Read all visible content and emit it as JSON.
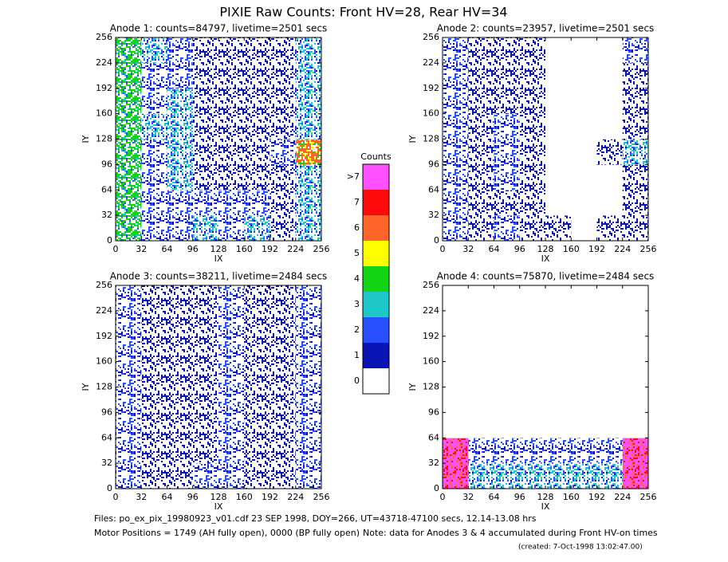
{
  "title": "PIXIE Raw Counts:  Front HV=28, Rear HV=34",
  "colorbar": {
    "title": "Counts",
    "levels": [
      0,
      1,
      2,
      3,
      4,
      5,
      6,
      7,
      {
        "value": 8,
        "label": ">7"
      }
    ],
    "colors": [
      "#ffffff",
      "#0a14b4",
      "#2850ff",
      "#1ec8c8",
      "#14d214",
      "#ffff00",
      "#ff6428",
      "#ff0a0a",
      "#ff50ff"
    ]
  },
  "footer": {
    "files": "Files: po_ex_pix_19980923_v01.cdf    23 SEP 1998, DOY=266, UT=43718-47100 secs, 12.14-13.08 hrs",
    "motor": "Motor Positions = 1749 (AH fully open), 0000 (BP fully open)",
    "note": "Note: data for Anodes 3 & 4 accumulated during Front HV-on times",
    "created": "(created:  7-Oct-1998 13:02:47.00)"
  },
  "chart_data": [
    {
      "type": "heatmap",
      "title": "Anode 1: counts=84797, livetime=2501 secs",
      "xlabel": "IX",
      "ylabel": "IY",
      "xlim": [
        0,
        256
      ],
      "ylim": [
        0,
        256
      ],
      "xticks": [
        0,
        32,
        64,
        96,
        128,
        160,
        192,
        224,
        256
      ],
      "yticks": [
        0,
        32,
        64,
        96,
        128,
        160,
        192,
        224,
        256
      ],
      "z": [
        [
          4,
          2,
          2,
          3,
          2,
          3,
          1,
          3
        ],
        [
          4,
          2,
          2,
          2,
          2,
          2,
          1,
          3
        ],
        [
          4,
          2,
          3,
          1,
          1,
          1,
          1,
          3
        ],
        [
          4,
          2,
          3,
          1,
          1,
          1,
          2,
          6
        ],
        [
          4,
          3,
          3,
          1,
          1,
          1,
          1,
          3
        ],
        [
          4,
          2,
          3,
          1,
          1,
          1,
          1,
          3
        ],
        [
          4,
          2,
          2,
          1,
          1,
          1,
          1,
          3
        ],
        [
          4,
          3,
          2,
          1,
          1,
          1,
          1,
          3
        ]
      ]
    },
    {
      "type": "heatmap",
      "title": "Anode 2: counts=23957, livetime=2501 secs",
      "xlabel": "IX",
      "ylabel": "IY",
      "xlim": [
        0,
        256
      ],
      "ylim": [
        0,
        256
      ],
      "xticks": [
        0,
        32,
        64,
        96,
        128,
        160,
        192,
        224,
        256
      ],
      "yticks": [
        0,
        32,
        64,
        96,
        128,
        160,
        192,
        224,
        256
      ],
      "z": [
        [
          2,
          1,
          2,
          1,
          1,
          0,
          1,
          1
        ],
        [
          2,
          1,
          1,
          1,
          0,
          0,
          0,
          1
        ],
        [
          2,
          1,
          2,
          1,
          0,
          0,
          0,
          1
        ],
        [
          2,
          1,
          2,
          1,
          0,
          0,
          1,
          3
        ],
        [
          2,
          1,
          2,
          1,
          0,
          0,
          0,
          1
        ],
        [
          2,
          1,
          1,
          1,
          0,
          0,
          0,
          1
        ],
        [
          2,
          1,
          1,
          1,
          0,
          0,
          0,
          1
        ],
        [
          2,
          1,
          1,
          1,
          0,
          0,
          0,
          2
        ]
      ]
    },
    {
      "type": "heatmap",
      "title": "Anode 3: counts=38211, livetime=2484 secs",
      "xlabel": "IX",
      "ylabel": "IY",
      "xlim": [
        0,
        256
      ],
      "ylim": [
        0,
        256
      ],
      "xticks": [
        0,
        32,
        64,
        96,
        128,
        160,
        192,
        224,
        256
      ],
      "yticks": [
        0,
        32,
        64,
        96,
        128,
        160,
        192,
        224,
        256
      ],
      "z": [
        [
          2,
          1,
          1,
          2,
          2,
          1,
          1,
          2
        ],
        [
          2,
          1,
          1,
          1,
          2,
          1,
          1,
          2
        ],
        [
          2,
          1,
          1,
          1,
          2,
          1,
          1,
          2
        ],
        [
          2,
          1,
          1,
          1,
          2,
          1,
          1,
          2
        ],
        [
          2,
          1,
          1,
          1,
          2,
          1,
          1,
          2
        ],
        [
          2,
          1,
          1,
          1,
          2,
          1,
          1,
          2
        ],
        [
          2,
          1,
          1,
          1,
          2,
          1,
          1,
          2
        ],
        [
          2,
          1,
          1,
          1,
          2,
          1,
          1,
          2
        ]
      ]
    },
    {
      "type": "heatmap",
      "title": "Anode 4: counts=75870, livetime=2484 secs",
      "xlabel": "IX",
      "ylabel": "IY",
      "xlim": [
        0,
        256
      ],
      "ylim": [
        0,
        256
      ],
      "xticks": [
        0,
        32,
        64,
        96,
        128,
        160,
        192,
        224,
        256
      ],
      "yticks": [
        0,
        32,
        64,
        96,
        128,
        160,
        192,
        224,
        256
      ],
      "z": [
        [
          8,
          3,
          3,
          3,
          3,
          3,
          3,
          8
        ],
        [
          8,
          2,
          2,
          2,
          2,
          2,
          2,
          8
        ],
        [
          0,
          0,
          0,
          0,
          0,
          0,
          0,
          0
        ],
        [
          0,
          0,
          0,
          0,
          0,
          0,
          0,
          0
        ],
        [
          0,
          0,
          0,
          0,
          0,
          0,
          0,
          0
        ],
        [
          0,
          0,
          0,
          0,
          0,
          0,
          0,
          0
        ],
        [
          0,
          0,
          0,
          0,
          0,
          0,
          0,
          0
        ],
        [
          0,
          0,
          0,
          0,
          0,
          0,
          0,
          0
        ]
      ]
    }
  ]
}
